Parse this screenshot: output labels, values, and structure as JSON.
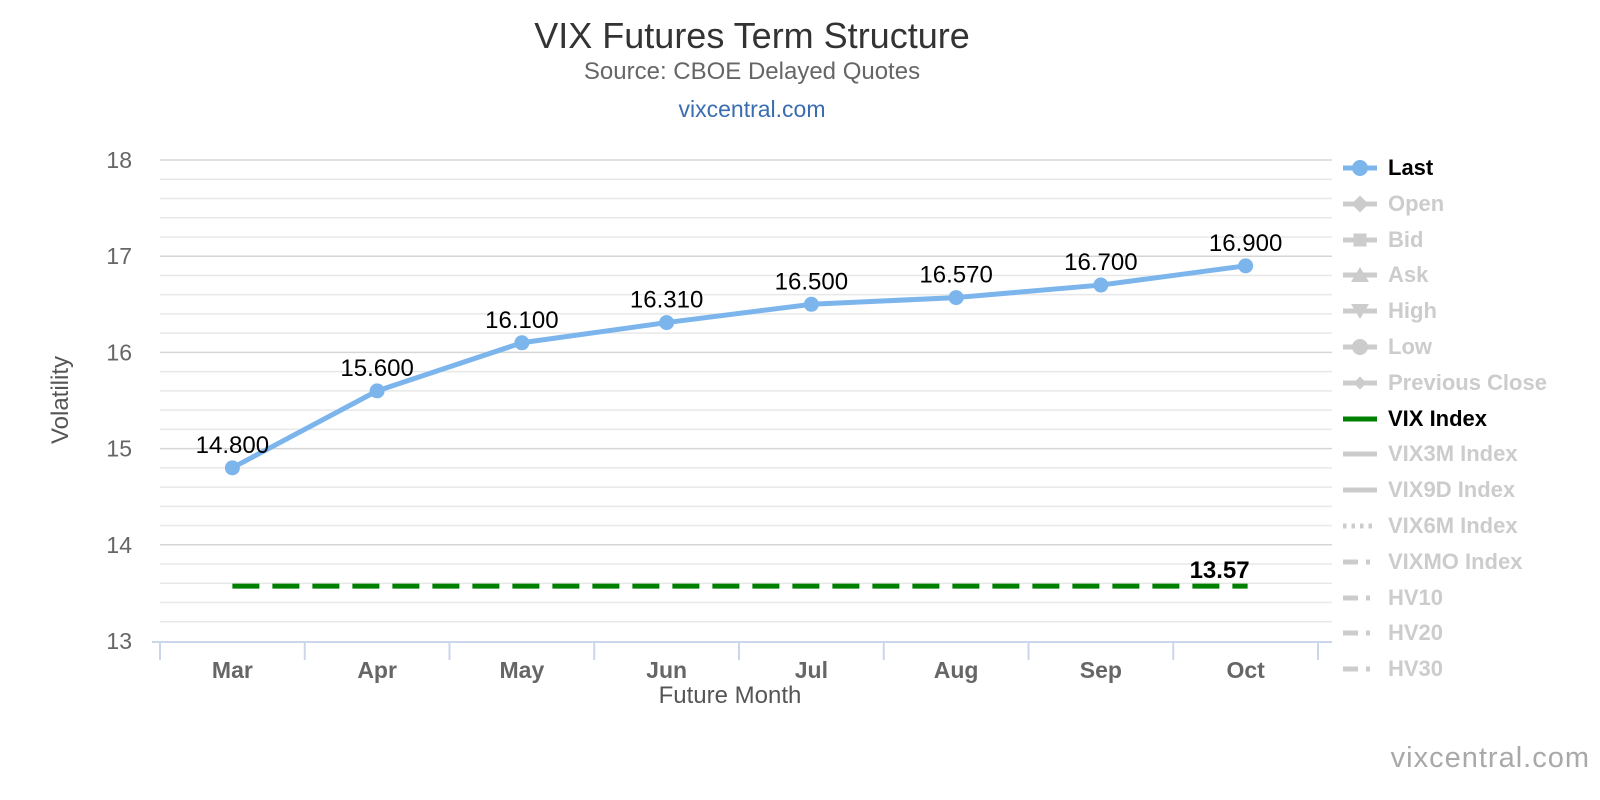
{
  "header": {
    "title": "VIX Futures Term Structure",
    "subtitle": "Source: CBOE Delayed Quotes",
    "link": "vixcentral.com"
  },
  "watermark": "vixcentral.com",
  "chart_data": {
    "type": "line",
    "title": "VIX Futures Term Structure",
    "subtitle": "Source: CBOE Delayed Quotes",
    "link": "vixcentral.com",
    "xlabel": "Future Month",
    "ylabel": "Volatility",
    "categories": [
      "Mar",
      "Apr",
      "May",
      "Jun",
      "Jul",
      "Aug",
      "Sep",
      "Oct"
    ],
    "ylim": [
      13,
      18
    ],
    "y_ticks": [
      13,
      14,
      15,
      16,
      17,
      18
    ],
    "minor_grid_step": 0.2,
    "grid": true,
    "legend_position": "right-vertical",
    "series": [
      {
        "name": "Last",
        "type": "line",
        "marker": "circle",
        "color": "#7cb5ec",
        "values": [
          14.8,
          15.6,
          16.1,
          16.31,
          16.5,
          16.57,
          16.7,
          16.9
        ],
        "data_labels": [
          "14.800",
          "15.600",
          "16.100",
          "16.310",
          "16.500",
          "16.570",
          "16.700",
          "16.900"
        ]
      },
      {
        "name": "VIX Index",
        "type": "hline-dashed",
        "color": "#008000",
        "value": 13.57,
        "data_label": "13.57"
      }
    ],
    "legend": [
      {
        "label": "Last",
        "marker": "line-circle",
        "color": "#7cb5ec",
        "enabled": true
      },
      {
        "label": "Open",
        "marker": "line-diamond",
        "enabled": false
      },
      {
        "label": "Bid",
        "marker": "line-square",
        "enabled": false
      },
      {
        "label": "Ask",
        "marker": "line-triangle-up",
        "enabled": false
      },
      {
        "label": "High",
        "marker": "line-triangle-down",
        "enabled": false
      },
      {
        "label": "Low",
        "marker": "line-circle",
        "enabled": false
      },
      {
        "label": "Previous Close",
        "marker": "line-diamond-small",
        "enabled": false
      },
      {
        "label": "VIX Index",
        "marker": "line",
        "color": "#008000",
        "enabled": true
      },
      {
        "label": "VIX3M Index",
        "marker": "line",
        "enabled": false
      },
      {
        "label": "VIX9D Index",
        "marker": "line",
        "enabled": false
      },
      {
        "label": "VIX6M Index",
        "marker": "dotted-line",
        "enabled": false
      },
      {
        "label": "VIXMO Index",
        "marker": "dashdot-line",
        "enabled": false
      },
      {
        "label": "HV10",
        "marker": "dashdot-line",
        "enabled": false
      },
      {
        "label": "HV20",
        "marker": "dashdot-line",
        "enabled": false
      },
      {
        "label": "HV30",
        "marker": "dashdot-line",
        "enabled": false
      }
    ],
    "colors": {
      "series_blue": "#7cb5ec",
      "vix_green": "#008000",
      "disabled": "#cccccc",
      "enabled_text": "#000000",
      "grid_minor": "#e8e8e8",
      "grid_major": "#d6d6d6",
      "axis_line": "#ccd6eb",
      "tick_text": "#666666",
      "axis_title_text": "#555555",
      "data_label": "#000000"
    }
  }
}
